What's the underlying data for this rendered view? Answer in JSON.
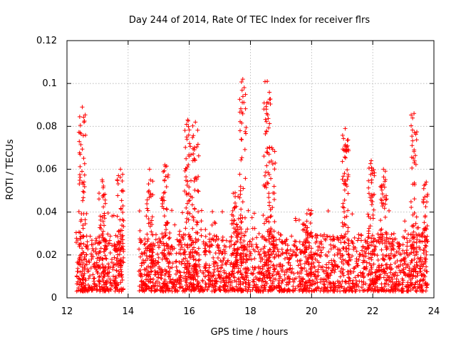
{
  "chart_data": {
    "type": "scatter",
    "title": "Day 244 of 2014, Rate Of TEC Index for receiver flrs",
    "xlabel": "GPS time / hours",
    "ylabel": "ROTI / TECUs",
    "xlim": [
      12,
      24
    ],
    "ylim": [
      0,
      0.12
    ],
    "grid": true,
    "marker": "+",
    "color": "#ff0000",
    "xticks": [
      12,
      14,
      16,
      18,
      20,
      22,
      24
    ],
    "xtick_labels": [
      "12",
      "14",
      "16",
      "18",
      "20",
      "22",
      "24"
    ],
    "yticks": [
      0,
      0.02,
      0.04,
      0.06,
      0.08,
      0.1,
      0.12
    ],
    "ytick_labels": [
      "0",
      "0.02",
      "0.04",
      "0.06",
      "0.08",
      "0.1",
      "0.12"
    ],
    "series": [
      {
        "name": "ROTI",
        "segments": [
          [
            12.3,
            13.85
          ],
          [
            14.35,
            23.8
          ]
        ],
        "peaks": [
          {
            "x": 12.5,
            "y": 0.089
          },
          {
            "x": 13.15,
            "y": 0.055
          },
          {
            "x": 13.75,
            "y": 0.06
          },
          {
            "x": 14.7,
            "y": 0.06
          },
          {
            "x": 15.2,
            "y": 0.062
          },
          {
            "x": 15.95,
            "y": 0.083
          },
          {
            "x": 16.2,
            "y": 0.082
          },
          {
            "x": 17.5,
            "y": 0.049
          },
          {
            "x": 17.75,
            "y": 0.102
          },
          {
            "x": 18.55,
            "y": 0.101
          },
          {
            "x": 18.7,
            "y": 0.07
          },
          {
            "x": 19.9,
            "y": 0.041
          },
          {
            "x": 21.1,
            "y": 0.079
          },
          {
            "x": 21.95,
            "y": 0.064
          },
          {
            "x": 22.35,
            "y": 0.06
          },
          {
            "x": 23.35,
            "y": 0.086
          },
          {
            "x": 23.75,
            "y": 0.054
          }
        ],
        "typical_range": [
          0.003,
          0.03
        ]
      }
    ]
  }
}
